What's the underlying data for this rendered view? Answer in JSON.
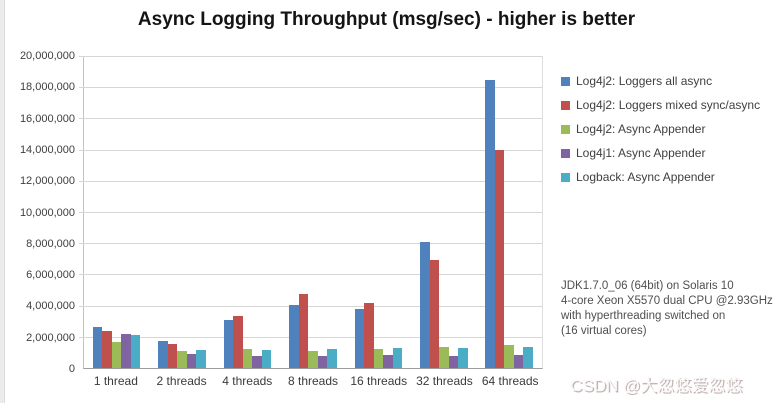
{
  "watermark": {
    "text": "CSDN @大忽悠爱忽悠"
  },
  "annotation": {
    "lines": [
      "JDK1.7.0_06 (64bit) on Solaris 10",
      "4-core Xeon X5570 dual CPU @2.93GHz",
      "with hyperthreading switched on",
      "(16 virtual cores)"
    ]
  },
  "chart_data": {
    "type": "bar",
    "title": "Async Logging Throughput (msg/sec) - higher is better",
    "categories": [
      "1 thread",
      "2 threads",
      "4 threads",
      "8 threads",
      "16 threads",
      "32 threads",
      "64 threads"
    ],
    "series": [
      {
        "name": "Log4j2: Loggers all async",
        "color": "#4F81BD",
        "values": [
          2600000,
          1750000,
          3050000,
          4050000,
          3800000,
          8100000,
          18450000
        ]
      },
      {
        "name": "Log4j2: Loggers mixed sync/async",
        "color": "#C0504D",
        "values": [
          2400000,
          1550000,
          3350000,
          4750000,
          4150000,
          6950000,
          14000000
        ]
      },
      {
        "name": "Log4j2: Async Appender",
        "color": "#9BBB59",
        "values": [
          1650000,
          1100000,
          1250000,
          1100000,
          1250000,
          1350000,
          1500000
        ]
      },
      {
        "name": "Log4j1: Async Appender",
        "color": "#8064A2",
        "values": [
          2200000,
          900000,
          750000,
          800000,
          850000,
          800000,
          850000
        ]
      },
      {
        "name": "Logback: Async Appender",
        "color": "#4BACC6",
        "values": [
          2100000,
          1150000,
          1150000,
          1200000,
          1300000,
          1300000,
          1350000
        ]
      }
    ],
    "ylabel": "",
    "xlabel": "",
    "ylim": [
      0,
      20000000
    ],
    "ytick_step": 2000000,
    "yticklabels_top_to_bottom": [
      "20,000,000",
      "18,000,000",
      "16,000,000",
      "14,000,000",
      "12,000,000",
      "10,000,000",
      "8,000,000",
      "6,000,000",
      "4,000,000",
      "2,000,000",
      "0"
    ],
    "grid": true,
    "legend_position": "right"
  }
}
